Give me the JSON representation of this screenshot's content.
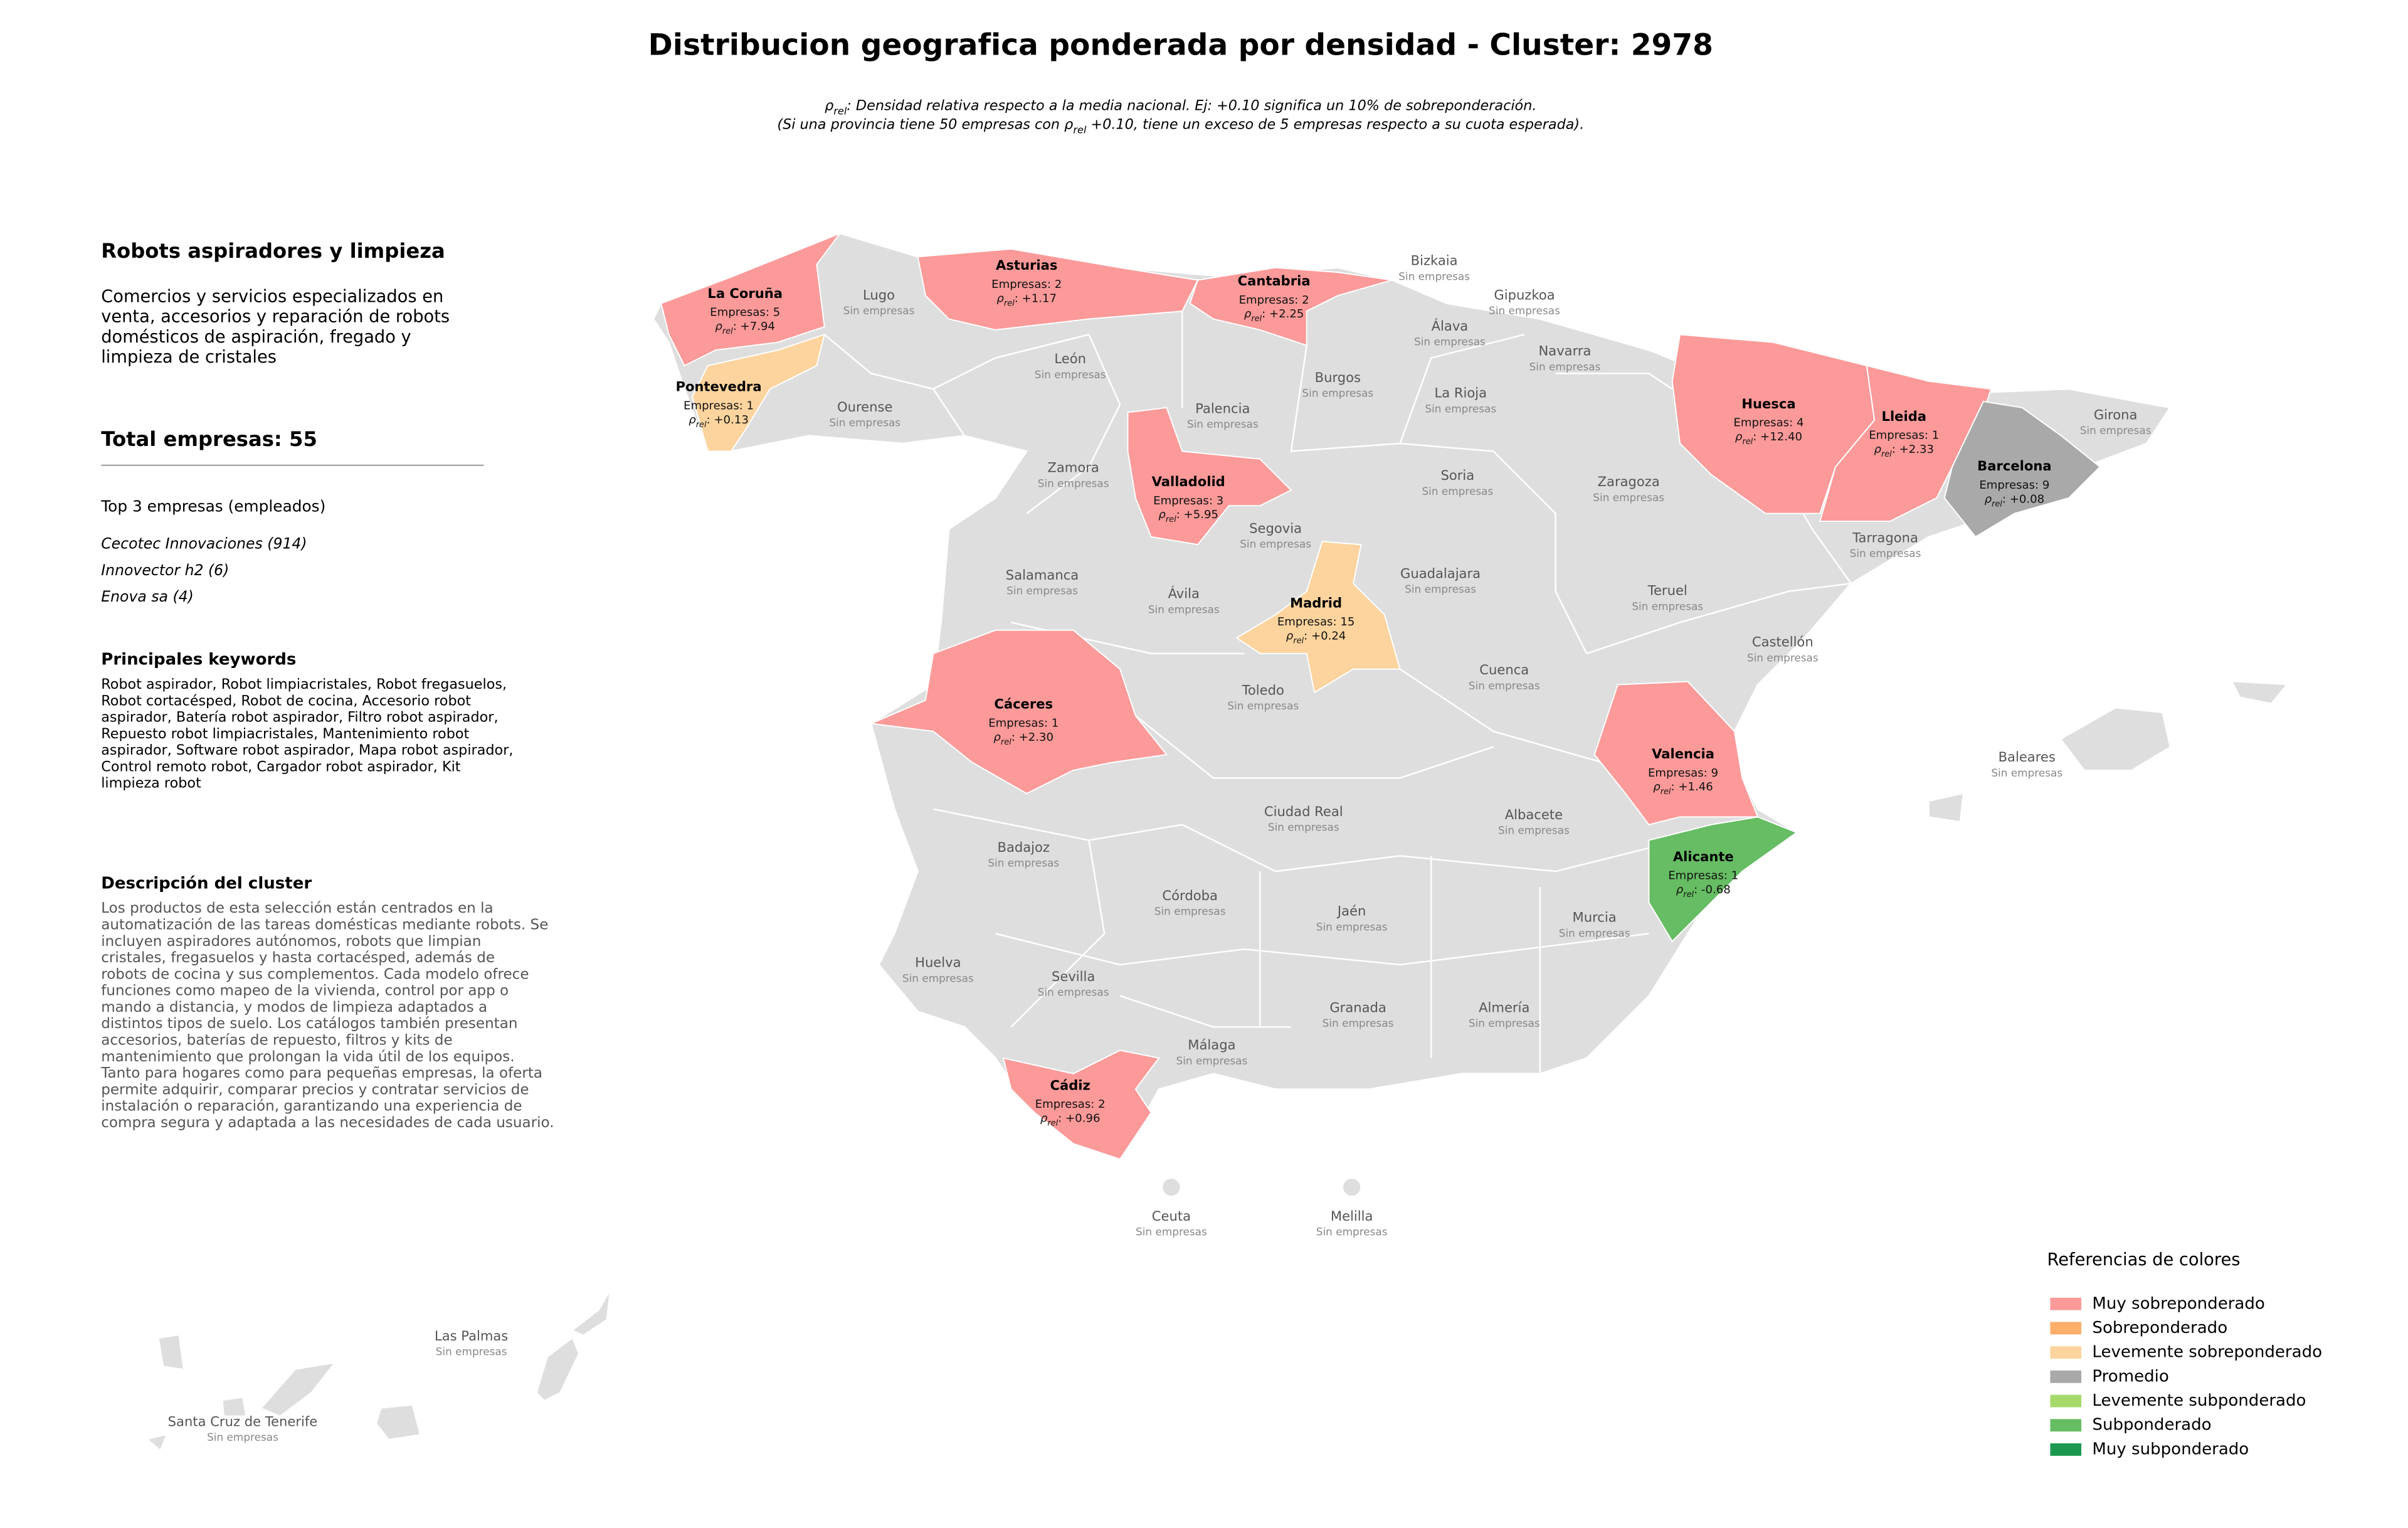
{
  "title": "Distribucion geografica ponderada por densidad - Cluster: 2978",
  "subtitle": [
    [
      {
        "text": "ρ"
      },
      {
        "text": "rel",
        "sub": true
      },
      {
        "text": ": Densidad relativa respecto a la media nacional. Ej: +0.10 significa un 10% de sobreponderación."
      }
    ],
    [
      {
        "text": "(Si una provincia tiene 50 empresas con "
      },
      {
        "text": "ρ"
      },
      {
        "text": "rel",
        "sub": true
      },
      {
        "text": " +0.10, tiene un exceso de 5 empresas respecto a su cuota esperada)."
      }
    ]
  ],
  "panel": {
    "heading": "Robots aspiradores y limpieza",
    "summary": [
      "Comercios y servicios especializados en",
      "venta, accesorios y reparación de robots",
      "domésticos de aspiración, fregado y",
      "limpieza de cristales"
    ],
    "total": "Total empresas: 55",
    "top_title": "Top 3 empresas (empleados)",
    "top": [
      "Cecotec Innovaciones (914)",
      "Innovector h2 (6)",
      "Enova sa (4)"
    ],
    "keywords_title": "Principales keywords",
    "keywords": [
      "Robot aspirador, Robot limpiacristales, Robot fregasuelos,",
      "Robot cortacésped, Robot de cocina, Accesorio robot",
      "aspirador, Batería robot aspirador, Filtro robot aspirador,",
      "Repuesto robot limpiacristales, Mantenimiento robot",
      "aspirador, Software robot aspirador, Mapa robot aspirador,",
      "Control remoto robot, Cargador robot aspirador, Kit",
      "limpieza robot"
    ],
    "description_title": "Descripción del cluster",
    "description": [
      "Los productos de esta selección están centrados en la",
      "automatización de las tareas domésticas mediante robots. Se",
      "incluyen aspiradores autónomos, robots que limpian",
      "cristales, fregasuelos y hasta cortacésped, además de",
      "robots de cocina y sus complementos. Cada modelo ofrece",
      "funciones como mapeo de la vivienda, control por app o",
      "mando a distancia, y modos de limpieza adaptados a",
      "distintos tipos de suelo. Los catálogos también presentan",
      "accesorios, baterías de repuesto, filtros y kits de",
      "mantenimiento que prolongan la vida útil de los equipos.",
      "Tanto para hogares como para pequeñas empresas, la oferta",
      "permite adquirir, comparar precios y contratar servicios de",
      "instalación o reparación, garantizando una experiencia de",
      "compra segura y adaptada a las necesidades de cada usuario."
    ]
  },
  "rho_symbol": "ρ",
  "rho_sub": "rel",
  "provinces_empty": [
    {
      "name": "Lugo",
      "status": "Sin empresas"
    },
    {
      "name": "Bizkaia",
      "status": "Sin empresas"
    },
    {
      "name": "Gipuzkoa",
      "status": "Sin empresas"
    },
    {
      "name": "Álava",
      "status": "Sin empresas"
    },
    {
      "name": "Navarra",
      "status": "Sin empresas"
    },
    {
      "name": "León",
      "status": "Sin empresas"
    },
    {
      "name": "Ourense",
      "status": "Sin empresas"
    },
    {
      "name": "Burgos",
      "status": "Sin empresas"
    },
    {
      "name": "Palencia",
      "status": "Sin empresas"
    },
    {
      "name": "La Rioja",
      "status": "Sin empresas"
    },
    {
      "name": "Girona",
      "status": "Sin empresas"
    },
    {
      "name": "Zamora",
      "status": "Sin empresas"
    },
    {
      "name": "Soria",
      "status": "Sin empresas"
    },
    {
      "name": "Zaragoza",
      "status": "Sin empresas"
    },
    {
      "name": "Segovia",
      "status": "Sin empresas"
    },
    {
      "name": "Tarragona",
      "status": "Sin empresas"
    },
    {
      "name": "Salamanca",
      "status": "Sin empresas"
    },
    {
      "name": "Guadalajara",
      "status": "Sin empresas"
    },
    {
      "name": "Teruel",
      "status": "Sin empresas"
    },
    {
      "name": "Ávila",
      "status": "Sin empresas"
    },
    {
      "name": "Castellón",
      "status": "Sin empresas"
    },
    {
      "name": "Cuenca",
      "status": "Sin empresas"
    },
    {
      "name": "Toledo",
      "status": "Sin empresas"
    },
    {
      "name": "Baleares",
      "status": "Sin empresas"
    },
    {
      "name": "Ciudad Real",
      "status": "Sin empresas"
    },
    {
      "name": "Albacete",
      "status": "Sin empresas"
    },
    {
      "name": "Badajoz",
      "status": "Sin empresas"
    },
    {
      "name": "Córdoba",
      "status": "Sin empresas"
    },
    {
      "name": "Jaén",
      "status": "Sin empresas"
    },
    {
      "name": "Murcia",
      "status": "Sin empresas"
    },
    {
      "name": "Huelva",
      "status": "Sin empresas"
    },
    {
      "name": "Sevilla",
      "status": "Sin empresas"
    },
    {
      "name": "Granada",
      "status": "Sin empresas"
    },
    {
      "name": "Almería",
      "status": "Sin empresas"
    },
    {
      "name": "Málaga",
      "status": "Sin empresas"
    },
    {
      "name": "Ceuta",
      "status": "Sin empresas"
    },
    {
      "name": "Melilla",
      "status": "Sin empresas"
    },
    {
      "name": "Las Palmas",
      "status": "Sin empresas"
    },
    {
      "name": "Santa Cruz de Tenerife",
      "status": "Sin empresas"
    }
  ],
  "provinces_active": [
    {
      "name": "La Coruña",
      "companies": "Empresas: 5",
      "rho": ": +7.94",
      "category": "Muy sobreponderado"
    },
    {
      "name": "Asturias",
      "companies": "Empresas: 2",
      "rho": ": +1.17",
      "category": "Muy sobreponderado"
    },
    {
      "name": "Cantabria",
      "companies": "Empresas: 2",
      "rho": ": +2.25",
      "category": "Muy sobreponderado"
    },
    {
      "name": "Pontevedra",
      "companies": "Empresas: 1",
      "rho": ": +0.13",
      "category": "Levemente sobreponderado"
    },
    {
      "name": "Huesca",
      "companies": "Empresas: 4",
      "rho": ": +12.40",
      "category": "Muy sobreponderado"
    },
    {
      "name": "Lleida",
      "companies": "Empresas: 1",
      "rho": ": +2.33",
      "category": "Muy sobreponderado"
    },
    {
      "name": "Barcelona",
      "companies": "Empresas: 9",
      "rho": ": +0.08",
      "category": "Promedio"
    },
    {
      "name": "Valladolid",
      "companies": "Empresas: 3",
      "rho": ": +5.95",
      "category": "Muy sobreponderado"
    },
    {
      "name": "Madrid",
      "companies": "Empresas: 15",
      "rho": ": +0.24",
      "category": "Levemente sobreponderado"
    },
    {
      "name": "Cáceres",
      "companies": "Empresas: 1",
      "rho": ": +2.30",
      "category": "Muy sobreponderado"
    },
    {
      "name": "Valencia",
      "companies": "Empresas: 9",
      "rho": ": +1.46",
      "category": "Muy sobreponderado"
    },
    {
      "name": "Alicante",
      "companies": "Empresas: 1",
      "rho": ": -0.68",
      "category": "Subponderado"
    },
    {
      "name": "Cádiz",
      "companies": "Empresas: 2",
      "rho": ": +0.96",
      "category": "Muy sobreponderado"
    }
  ],
  "legend": {
    "title": "Referencias de colores",
    "items": [
      {
        "label": "Muy sobreponderado",
        "color": "#fb9a99"
      },
      {
        "label": "Sobreponderado",
        "color": "#fdae6b"
      },
      {
        "label": "Levemente sobreponderado",
        "color": "#fdd49e"
      },
      {
        "label": "Promedio",
        "color": "#a9a9a9"
      },
      {
        "label": "Levemente subponderado",
        "color": "#a6d96a"
      },
      {
        "label": "Subponderado",
        "color": "#66bd63"
      },
      {
        "label": "Muy subponderado",
        "color": "#1a9850"
      }
    ]
  },
  "base_color": "#dedede"
}
